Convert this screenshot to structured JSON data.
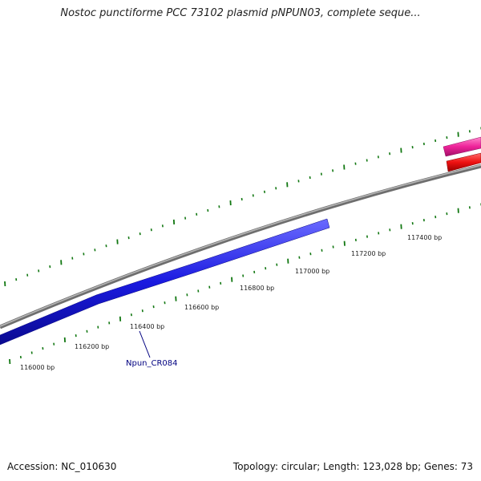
{
  "title": "Nostoc punctiforme PCC 73102 plasmid pNPUN03, complete seque...",
  "footer": {
    "accession": "Accession: NC_010630",
    "summary": "Topology: circular; Length: 123,028 bp; Genes: 73"
  },
  "ruler": {
    "labels": [
      "116000 bp",
      "116200 bp",
      "116400 bp",
      "116600 bp",
      "116800 bp",
      "117000 bp",
      "117200 bp",
      "117400 bp"
    ]
  },
  "features": {
    "gene_label": "Npun_CR084"
  },
  "colors": {
    "backbone": "#808080",
    "gene_blue": "#1a1ae0",
    "gene_red": "#ee1111",
    "gene_pink": "#ee2299",
    "tick": "#117711",
    "label": "#000080"
  }
}
